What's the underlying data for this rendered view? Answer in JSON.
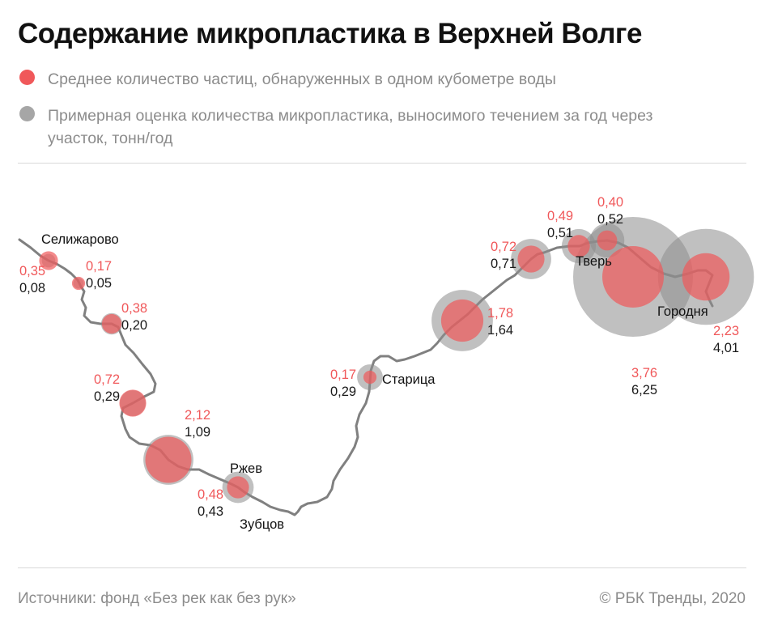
{
  "title": "Содержание микропластика в Верхней Волге",
  "legend": [
    {
      "label": "Среднее количество частиц, обнаруженных в одном кубометре воды",
      "color": "#f0585a"
    },
    {
      "label": "Примерная оценка количества микропластика, выносимого течением за год через участок, тонн/год",
      "color": "#a6a6a6"
    }
  ],
  "footer": {
    "source": "Источники: фонд «Без рек как без рук»",
    "copyright": "© РБК Тренды, 2020"
  },
  "colors": {
    "particles": "#f0585a",
    "tonnage": "#8c8c8c",
    "river": "#808080"
  },
  "cities": [
    "Селижарово",
    "Ржев",
    "Зубцов",
    "Старица",
    "Тверь",
    "Городня"
  ],
  "chart_data": {
    "type": "map-bubble",
    "series": [
      {
        "name": "Среднее количество частиц, обнаруженных в одном кубометре воды",
        "key": "particles"
      },
      {
        "name": "Примерная оценка количества микропластика, выносимого течением за год через участок, тонн/год",
        "key": "tonnage"
      }
    ],
    "points": [
      {
        "particles": "0,35",
        "tonnage": "0,08"
      },
      {
        "particles": "0,17",
        "tonnage": "0,05"
      },
      {
        "particles": "0,38",
        "tonnage": "0,20"
      },
      {
        "particles": "0,72",
        "tonnage": "0,29"
      },
      {
        "particles": "2,12",
        "tonnage": "1,09"
      },
      {
        "particles": "0,48",
        "tonnage": "0,43"
      },
      {
        "particles": "0,17",
        "tonnage": "0,29"
      },
      {
        "particles": "1,78",
        "tonnage": "1,64"
      },
      {
        "particles": "0,72",
        "tonnage": "0,71"
      },
      {
        "particles": "0,49",
        "tonnage": "0,51"
      },
      {
        "particles": "0,40",
        "tonnage": "0,52"
      },
      {
        "particles": "3,76",
        "tonnage": "6,25"
      },
      {
        "particles": "2,23",
        "tonnage": "4,01"
      }
    ]
  }
}
